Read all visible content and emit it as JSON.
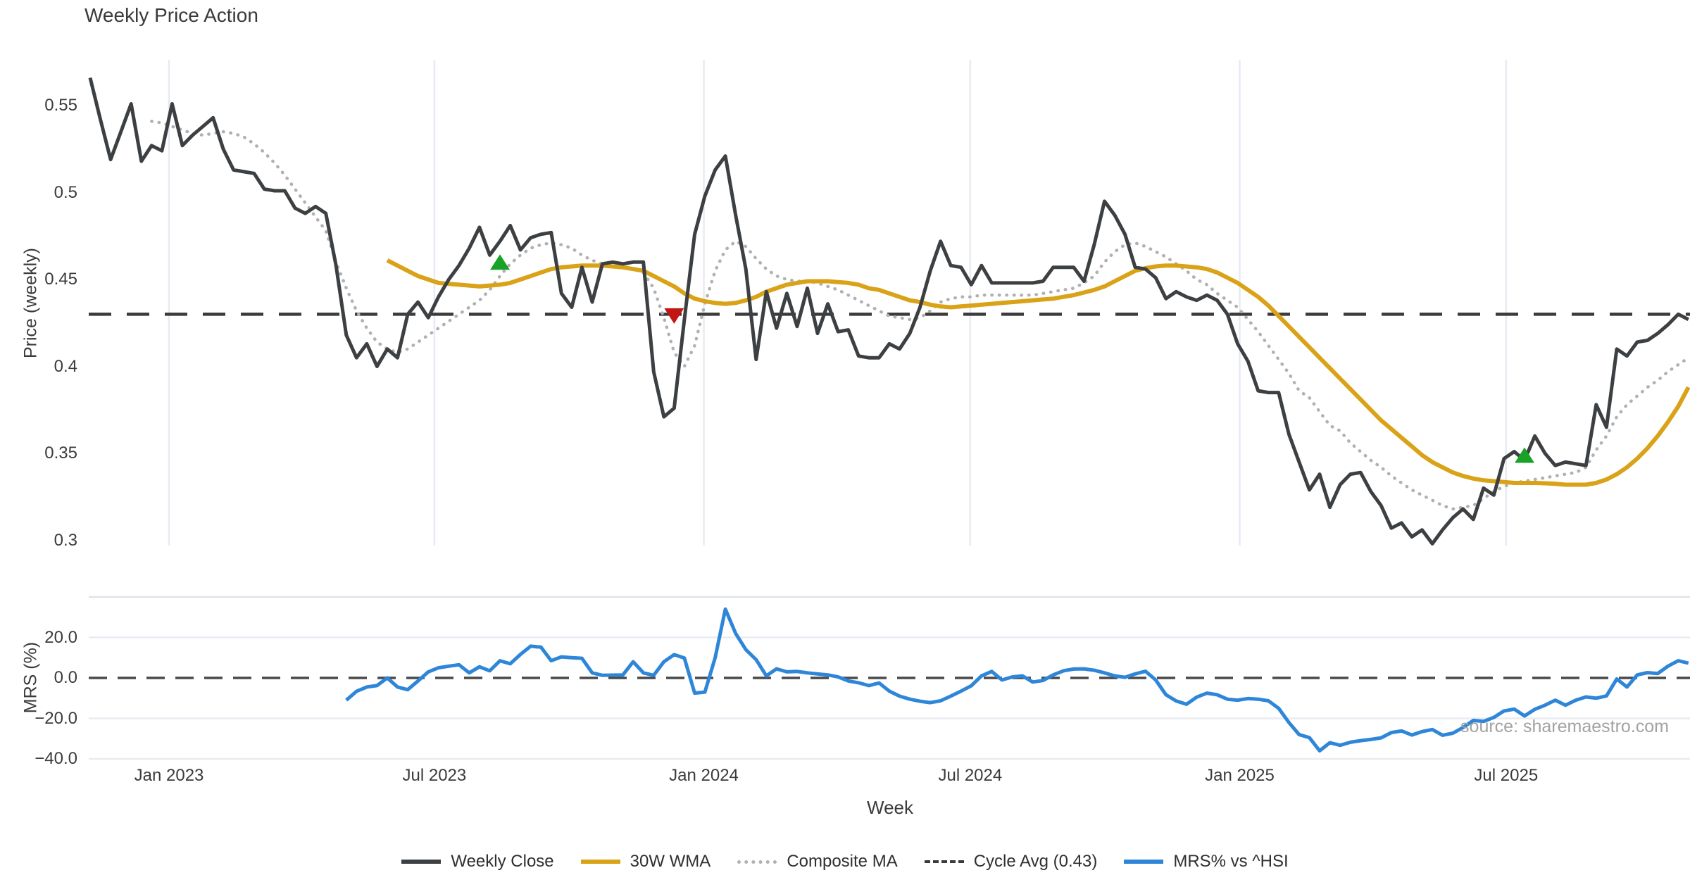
{
  "title_note": "static weekly stock chart with relative strength subplot",
  "source_note": "source: sharemaestro.com",
  "colors": {
    "close": "#3d4043",
    "wma": "#d9a217",
    "composite": "#b1b1b3",
    "cycle": "#3a3a3a",
    "mrs": "#2e86d9",
    "buy": "#18a327",
    "sell": "#c41515",
    "grid": "#e9ebf2",
    "spine": "#dfe2ea",
    "zero": "#4a4a4a"
  },
  "legend": {
    "items": [
      {
        "key": "close",
        "style": "solid",
        "label": "Weekly Close"
      },
      {
        "key": "wma",
        "style": "solid",
        "label": "30W WMA"
      },
      {
        "key": "composite",
        "style": "dotted",
        "label": "Composite MA"
      },
      {
        "key": "cycle",
        "style": "dashed",
        "label": "Cycle Avg (0.43)"
      },
      {
        "key": "mrs",
        "style": "solid",
        "label": "MRS% vs ^HSI"
      }
    ]
  },
  "chart_data": {
    "type": "line",
    "title": "Weekly Price Action",
    "x_axis": {
      "label": "Week",
      "ticks": [
        {
          "label": "Jan 2023",
          "week": 7.7
        },
        {
          "label": "Jul 2023",
          "week": 33.6
        },
        {
          "label": "Jan 2024",
          "week": 59.9
        },
        {
          "label": "Jul 2024",
          "week": 85.9
        },
        {
          "label": "Jan 2025",
          "week": 112.2
        },
        {
          "label": "Jul 2025",
          "week": 138.2
        }
      ]
    },
    "price_panel": {
      "ylabel": "Price (weekly)",
      "yticks": [
        {
          "label": "0.55",
          "value": 0.55
        },
        {
          "label": "0.5",
          "value": 0.5
        },
        {
          "label": "0.45",
          "value": 0.45
        },
        {
          "label": "0.4",
          "value": 0.4
        },
        {
          "label": "0.35",
          "value": 0.35
        },
        {
          "label": "0.3",
          "value": 0.3
        }
      ],
      "cycle_avg": 0.43,
      "series": {
        "weekly_close": {
          "name": "Weekly Close",
          "start_week": 0,
          "values": [
            0.566,
            0.542,
            0.519,
            0.535,
            0.551,
            0.518,
            0.527,
            0.524,
            0.551,
            0.527,
            0.533,
            0.538,
            0.543,
            0.525,
            0.513,
            0.512,
            0.511,
            0.502,
            0.501,
            0.501,
            0.491,
            0.488,
            0.492,
            0.488,
            0.458,
            0.418,
            0.405,
            0.413,
            0.4,
            0.41,
            0.405,
            0.43,
            0.437,
            0.428,
            0.44,
            0.45,
            0.458,
            0.468,
            0.48,
            0.464,
            0.472,
            0.481,
            0.467,
            0.474,
            0.476,
            0.477,
            0.442,
            0.434,
            0.457,
            0.437,
            0.459,
            0.46,
            0.459,
            0.46,
            0.46,
            0.397,
            0.371,
            0.376,
            0.427,
            0.476,
            0.498,
            0.513,
            0.521,
            0.487,
            0.456,
            0.404,
            0.443,
            0.422,
            0.442,
            0.423,
            0.445,
            0.419,
            0.436,
            0.42,
            0.421,
            0.406,
            0.405,
            0.405,
            0.413,
            0.41,
            0.419,
            0.434,
            0.455,
            0.472,
            0.458,
            0.457,
            0.447,
            0.458,
            0.448,
            0.448,
            0.448,
            0.448,
            0.448,
            0.449,
            0.457,
            0.457,
            0.457,
            0.449,
            0.47,
            0.495,
            0.487,
            0.476,
            0.457,
            0.456,
            0.451,
            0.439,
            0.443,
            0.44,
            0.438,
            0.441,
            0.438,
            0.43,
            0.413,
            0.403,
            0.386,
            0.385,
            0.385,
            0.361,
            0.345,
            0.329,
            0.338,
            0.319,
            0.332,
            0.338,
            0.339,
            0.328,
            0.32,
            0.307,
            0.31,
            0.302,
            0.306,
            0.298,
            0.306,
            0.313,
            0.318,
            0.312,
            0.33,
            0.326,
            0.347,
            0.351,
            0.346,
            0.36,
            0.35,
            0.343,
            0.345,
            0.344,
            0.343,
            0.378,
            0.365,
            0.41,
            0.406,
            0.414,
            0.415,
            0.419,
            0.424,
            0.43,
            0.427
          ]
        },
        "wma_30w": {
          "name": "30W WMA",
          "start_week": 29,
          "values": [
            0.461,
            0.458,
            0.455,
            0.452,
            0.45,
            0.448,
            0.4475,
            0.447,
            0.4465,
            0.446,
            0.4465,
            0.447,
            0.448,
            0.45,
            0.452,
            0.454,
            0.456,
            0.457,
            0.4575,
            0.458,
            0.458,
            0.458,
            0.4575,
            0.457,
            0.456,
            0.455,
            0.452,
            0.449,
            0.446,
            0.442,
            0.439,
            0.4375,
            0.4365,
            0.436,
            0.4365,
            0.438,
            0.44,
            0.443,
            0.445,
            0.447,
            0.448,
            0.449,
            0.449,
            0.449,
            0.4485,
            0.448,
            0.447,
            0.445,
            0.444,
            0.442,
            0.44,
            0.438,
            0.437,
            0.4355,
            0.4345,
            0.434,
            0.4345,
            0.435,
            0.4355,
            0.436,
            0.4365,
            0.437,
            0.4375,
            0.438,
            0.4385,
            0.439,
            0.44,
            0.441,
            0.4425,
            0.444,
            0.446,
            0.449,
            0.452,
            0.455,
            0.4565,
            0.4575,
            0.458,
            0.458,
            0.4575,
            0.457,
            0.456,
            0.454,
            0.451,
            0.448,
            0.444,
            0.44,
            0.435,
            0.429,
            0.423,
            0.417,
            0.411,
            0.405,
            0.399,
            0.393,
            0.387,
            0.381,
            0.375,
            0.369,
            0.364,
            0.359,
            0.354,
            0.349,
            0.345,
            0.342,
            0.339,
            0.337,
            0.3355,
            0.3345,
            0.334,
            0.3335,
            0.333,
            0.333,
            0.333,
            0.3328,
            0.3325,
            0.332,
            0.332,
            0.332,
            0.333,
            0.335,
            0.338,
            0.342,
            0.347,
            0.353,
            0.36,
            0.368,
            0.377,
            0.388
          ]
        },
        "composite_ma": {
          "name": "Composite MA",
          "start_week": 6,
          "values": [
            0.541,
            0.54,
            0.538,
            0.536,
            0.534,
            0.533,
            0.534,
            0.535,
            0.534,
            0.532,
            0.528,
            0.523,
            0.517,
            0.51,
            0.502,
            0.494,
            0.486,
            0.478,
            0.46,
            0.445,
            0.432,
            0.422,
            0.414,
            0.41,
            0.408,
            0.41,
            0.414,
            0.418,
            0.422,
            0.426,
            0.43,
            0.434,
            0.438,
            0.444,
            0.452,
            0.459,
            0.464,
            0.468,
            0.47,
            0.471,
            0.47,
            0.468,
            0.464,
            0.461,
            0.459,
            0.458,
            0.457,
            0.456,
            0.454,
            0.445,
            0.428,
            0.408,
            0.4,
            0.412,
            0.436,
            0.455,
            0.467,
            0.472,
            0.469,
            0.462,
            0.456,
            0.452,
            0.45,
            0.449,
            0.449,
            0.448,
            0.446,
            0.444,
            0.441,
            0.438,
            0.435,
            0.432,
            0.429,
            0.428,
            0.427,
            0.428,
            0.432,
            0.437,
            0.439,
            0.44,
            0.44,
            0.441,
            0.441,
            0.441,
            0.441,
            0.441,
            0.441,
            0.442,
            0.443,
            0.444,
            0.445,
            0.448,
            0.452,
            0.46,
            0.466,
            0.47,
            0.471,
            0.469,
            0.466,
            0.463,
            0.459,
            0.455,
            0.45,
            0.447,
            0.442,
            0.438,
            0.434,
            0.427,
            0.42,
            0.412,
            0.404,
            0.396,
            0.386,
            0.382,
            0.374,
            0.366,
            0.363,
            0.356,
            0.351,
            0.346,
            0.342,
            0.337,
            0.333,
            0.329,
            0.326,
            0.323,
            0.32,
            0.318,
            0.319,
            0.32,
            0.324,
            0.328,
            0.331,
            0.333,
            0.334,
            0.335,
            0.336,
            0.337,
            0.338,
            0.339,
            0.342,
            0.352,
            0.36,
            0.371,
            0.378,
            0.383,
            0.388,
            0.392,
            0.397,
            0.401,
            0.405
          ]
        }
      },
      "markers": [
        {
          "type": "buy",
          "week": 40,
          "price": 0.46
        },
        {
          "type": "sell",
          "week": 57,
          "price": 0.429
        },
        {
          "type": "buy",
          "week": 140,
          "price": 0.349
        }
      ]
    },
    "mrs_panel": {
      "ylabel": "MRS (%)",
      "yticks": [
        {
          "label": "20.0",
          "value": 20
        },
        {
          "label": "0.0",
          "value": 0
        },
        {
          "label": "−20.0",
          "value": -20
        },
        {
          "label": "−40.0",
          "value": -40
        }
      ],
      "zero_line": 0,
      "top_boundary": 40,
      "series": {
        "mrs_vs_hsi": {
          "name": "MRS% vs ^HSI",
          "start_week": 25,
          "values": [
            -11,
            -6.6,
            -4.5,
            -3.8,
            0,
            -4.5,
            -5.8,
            -1.5,
            3,
            5,
            5.8,
            6.5,
            2.5,
            5.5,
            3.5,
            8.5,
            7,
            11.6,
            15.7,
            15.2,
            8.5,
            10.4,
            10,
            9.7,
            2.5,
            1.3,
            1.4,
            1.5,
            8,
            2.5,
            1.3,
            8,
            11.5,
            9.8,
            -7.5,
            -7,
            10,
            34,
            22,
            14,
            9,
            1,
            4.5,
            3,
            3.2,
            2.5,
            2,
            1.5,
            0.5,
            -1.5,
            -2.4,
            -3.8,
            -2.5,
            -6.5,
            -9,
            -10.5,
            -11.5,
            -12.2,
            -11.3,
            -9,
            -6.5,
            -3.9,
            1,
            3.2,
            -1,
            0.5,
            1,
            -2,
            -1.3,
            1.5,
            3.5,
            4.4,
            4.5,
            3.8,
            2.5,
            1,
            0.3,
            2,
            3.3,
            -1,
            -8.3,
            -11.4,
            -13,
            -9.5,
            -7.5,
            -8.3,
            -10.5,
            -11,
            -10.2,
            -10.5,
            -11.3,
            -15,
            -22,
            -28,
            -29.5,
            -36,
            -32,
            -33.3,
            -31.8,
            -31,
            -30.4,
            -29.6,
            -27,
            -26.2,
            -28.2,
            -26.5,
            -25.5,
            -28.3,
            -27.3,
            -24.5,
            -21,
            -21.5,
            -19.5,
            -16.3,
            -15.4,
            -18.8,
            -15.5,
            -13.5,
            -11,
            -13.5,
            -11,
            -9.4,
            -10,
            -8.9,
            -0.5,
            -4.5,
            1.5,
            2.6,
            2.2,
            5.8,
            8.5,
            7.3
          ]
        }
      }
    }
  }
}
